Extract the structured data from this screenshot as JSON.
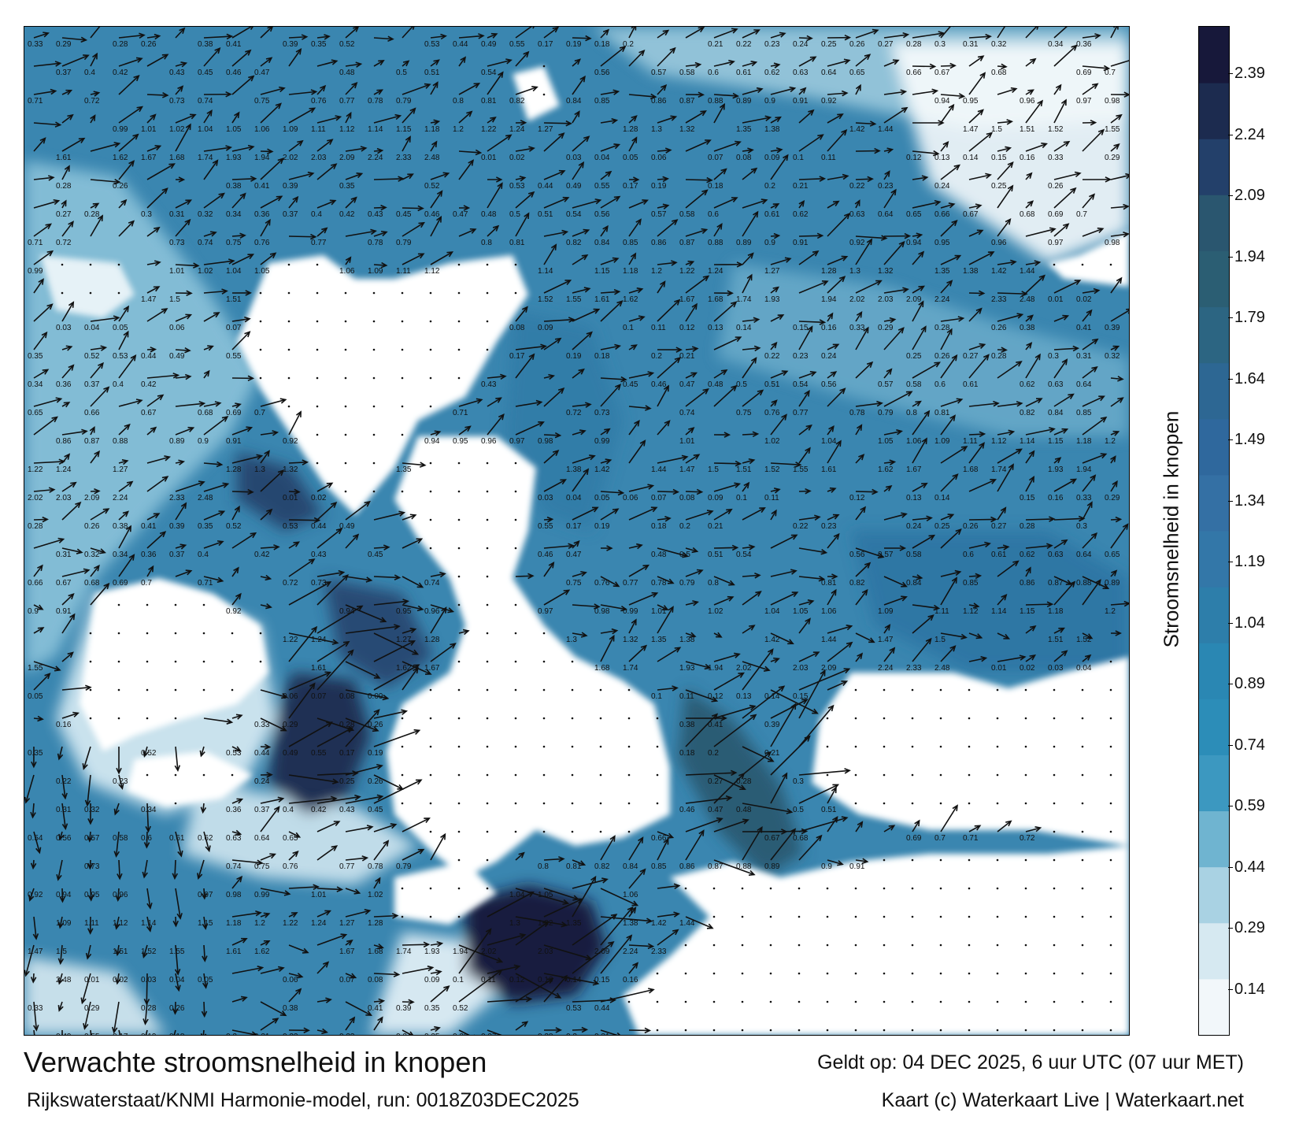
{
  "map": {
    "title": "Verwachte stroomsnelheid in knopen",
    "model_run": "Rijkswaterstaat/KNMI Harmonie-model, run: 0018Z03DEC2025",
    "valid_time": "Geldt op: 04 DEC 2025, 6 uur UTC (07 uur MET)",
    "credit": "Kaart (c) Waterkaart Live | Waterkaart.net",
    "colorbar_label": "Stroomsnelheid in knopen",
    "colorbar_ticks": [
      "2.39",
      "2.24",
      "2.09",
      "1.94",
      "1.79",
      "1.64",
      "1.49",
      "1.34",
      "1.19",
      "1.04",
      "0.89",
      "0.74",
      "0.59",
      "0.44",
      "0.29",
      "0.14"
    ],
    "colorbar_colors": [
      "#f2f7fa",
      "#d6e9f1",
      "#a9d2e3",
      "#6fb4d0",
      "#3c98c0",
      "#2c8db8",
      "#2a87b3",
      "#2d7eaa",
      "#3377a8",
      "#3470a4",
      "#2f689d",
      "#2d6793",
      "#2c6582",
      "#2b5e73",
      "#2a566f",
      "#23406a",
      "#1c2b4f",
      "#17183a"
    ],
    "water_color": "#3a86b0",
    "land_color": "#ffffff",
    "sample_speed_labels": [
      "0.33",
      "0.29",
      "0.28",
      "0.26",
      "0.38",
      "0.41",
      "0.39",
      "0.35",
      "0.52",
      "0.53",
      "0.44",
      "0.49",
      "0.55",
      "0.17",
      "0.19",
      "0.18",
      "0.2",
      "0.21",
      "0.22",
      "0.23",
      "0.24",
      "0.25",
      "0.26",
      "0.27",
      "0.28",
      "0.3",
      "0.31",
      "0.32",
      "0.34",
      "0.36",
      "0.37",
      "0.4",
      "0.42",
      "0.43",
      "0.45",
      "0.46",
      "0.47",
      "0.48",
      "0.5",
      "0.51",
      "0.54",
      "0.56",
      "0.57",
      "0.58",
      "0.6",
      "0.61",
      "0.62",
      "0.63",
      "0.64",
      "0.65",
      "0.66",
      "0.67",
      "0.68",
      "0.69",
      "0.7",
      "0.71",
      "0.72",
      "0.73",
      "0.74",
      "0.75",
      "0.76",
      "0.77",
      "0.78",
      "0.79",
      "0.8",
      "0.81",
      "0.82",
      "0.84",
      "0.85",
      "0.86",
      "0.87",
      "0.88",
      "0.89",
      "0.9",
      "0.91",
      "0.92",
      "0.94",
      "0.95",
      "0.96",
      "0.97",
      "0.98",
      "0.99",
      "1.01",
      "1.02",
      "1.04",
      "1.05",
      "1.06",
      "1.09",
      "1.11",
      "1.12",
      "1.14",
      "1.15",
      "1.18",
      "1.2",
      "1.22",
      "1.24",
      "1.27",
      "1.28",
      "1.3",
      "1.32",
      "1.35",
      "1.38",
      "1.42",
      "1.44",
      "1.47",
      "1.5",
      "1.51",
      "1.52",
      "1.55",
      "1.61",
      "1.62",
      "1.67",
      "1.68",
      "1.74",
      "1.93",
      "1.94",
      "2.02",
      "2.03",
      "2.09",
      "2.24",
      "2.33",
      "2.48",
      "0.01",
      "0.02",
      "0.03",
      "0.04",
      "0.05",
      "0.06",
      "0.07",
      "0.08",
      "0.09",
      "0.1",
      "0.11",
      "0.12",
      "0.13",
      "0.14",
      "0.15",
      "0.16"
    ]
  }
}
